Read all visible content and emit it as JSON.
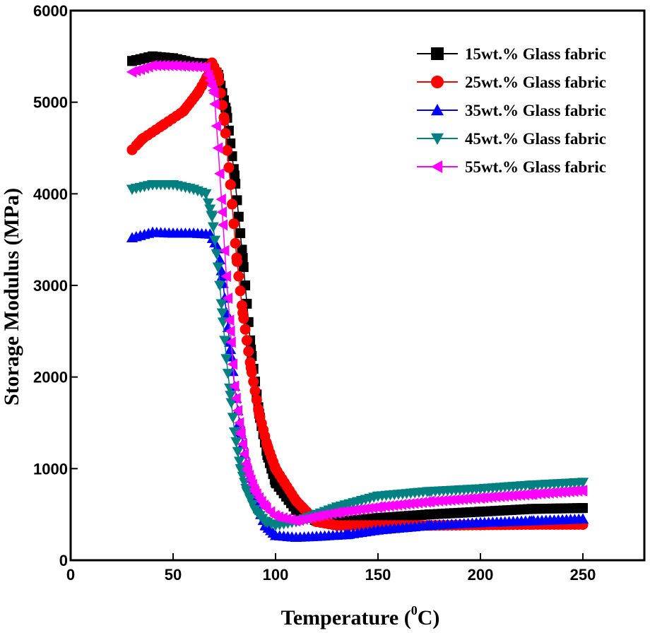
{
  "chart_data": {
    "type": "scatter",
    "title": "",
    "xlabel": "Temperature (",
    "xlabel_sup": "0",
    "xlabel_suffix": "C)",
    "ylabel": "Storage Modulus (MPa)",
    "xlim": [
      0,
      280
    ],
    "ylim": [
      0,
      6000
    ],
    "xticks": [
      0,
      50,
      100,
      150,
      200,
      250
    ],
    "yticks": [
      0,
      1000,
      2000,
      3000,
      4000,
      5000,
      6000
    ],
    "legend_position": "top-right",
    "series": [
      {
        "name": "15wt.% Glass fabric",
        "color": "#000000",
        "marker": "square",
        "x": [
          30,
          40,
          50,
          60,
          68,
          72,
          76,
          80,
          84,
          88,
          92,
          96,
          100,
          110,
          120,
          130,
          150,
          175,
          200,
          225,
          250
        ],
        "y": [
          5450,
          5500,
          5480,
          5430,
          5420,
          5300,
          4900,
          4200,
          3300,
          2300,
          1600,
          1150,
          850,
          550,
          430,
          420,
          460,
          500,
          530,
          560,
          570
        ]
      },
      {
        "name": "25wt.% Glass fabric",
        "color": "#ff0000",
        "marker": "circle",
        "x": [
          30,
          35,
          45,
          55,
          62,
          66,
          69,
          72,
          75,
          78,
          81,
          84,
          88,
          92,
          96,
          100,
          110,
          120,
          130,
          150,
          175,
          200,
          225,
          250
        ],
        "y": [
          4480,
          4600,
          4750,
          4900,
          5100,
          5250,
          5430,
          5300,
          4800,
          4100,
          3300,
          2700,
          2100,
          1600,
          1250,
          1000,
          650,
          420,
          380,
          380,
          380,
          385,
          390,
          390
        ]
      },
      {
        "name": "35wt.% Glass fabric",
        "color": "#0000ff",
        "marker": "triangle-up",
        "x": [
          30,
          40,
          50,
          60,
          68,
          72,
          74,
          76,
          78,
          80,
          83,
          86,
          90,
          95,
          100,
          110,
          120,
          135,
          150,
          175,
          200,
          225,
          250
        ],
        "y": [
          3520,
          3580,
          3570,
          3570,
          3560,
          3400,
          3100,
          2700,
          2300,
          1900,
          1400,
          1000,
          650,
          380,
          270,
          250,
          260,
          280,
          330,
          380,
          410,
          430,
          450
        ]
      },
      {
        "name": "45wt.% Glass fabric",
        "color": "#008080",
        "marker": "triangle-down",
        "x": [
          30,
          40,
          50,
          60,
          66,
          69,
          72,
          74,
          76,
          78,
          80,
          83,
          86,
          90,
          95,
          100,
          110,
          120,
          130,
          150,
          175,
          200,
          225,
          250
        ],
        "y": [
          4050,
          4100,
          4100,
          4050,
          4000,
          3750,
          3200,
          2700,
          2200,
          1800,
          1400,
          1000,
          750,
          550,
          420,
          380,
          420,
          500,
          580,
          700,
          750,
          780,
          820,
          850
        ]
      },
      {
        "name": "55wt.% Glass fabric",
        "color": "#ff00ff",
        "marker": "triangle-left",
        "x": [
          30,
          40,
          50,
          60,
          66,
          70,
          72,
          74,
          76,
          78,
          80,
          83,
          86,
          90,
          95,
          100,
          110,
          120,
          130,
          150,
          175,
          200,
          225,
          250
        ],
        "y": [
          5330,
          5400,
          5400,
          5390,
          5380,
          5100,
          4500,
          3800,
          3100,
          2500,
          1900,
          1400,
          1000,
          750,
          580,
          480,
          430,
          480,
          520,
          580,
          640,
          680,
          720,
          760
        ]
      }
    ]
  }
}
